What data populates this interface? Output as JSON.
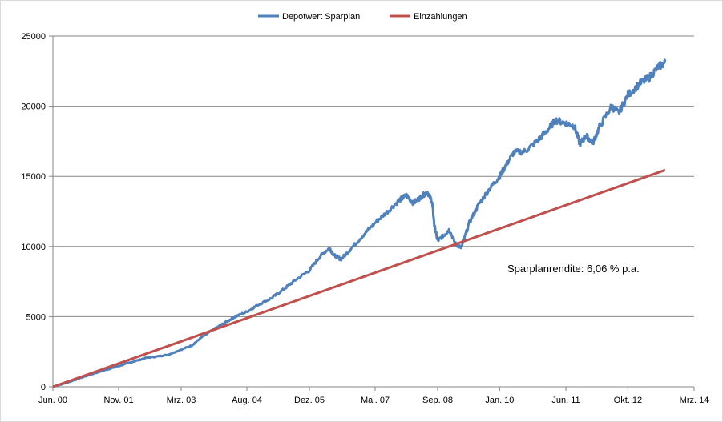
{
  "chart_data": {
    "type": "line",
    "title": "",
    "xlabel": "",
    "ylabel": "",
    "ylim": [
      0,
      25000
    ],
    "yticks": [
      0,
      5000,
      10000,
      15000,
      20000,
      25000
    ],
    "yticks_labels": [
      "0",
      "5000",
      "10000",
      "15000",
      "20000",
      "25000"
    ],
    "xlim": [
      2000.42,
      2014.17
    ],
    "xticks": [
      {
        "t": 2000.42,
        "label": "Jun. 00"
      },
      {
        "t": 2001.83,
        "label": "Nov. 01"
      },
      {
        "t": 2003.17,
        "label": "Mrz. 03"
      },
      {
        "t": 2004.58,
        "label": "Aug. 04"
      },
      {
        "t": 2005.92,
        "label": "Dez. 05"
      },
      {
        "t": 2007.33,
        "label": "Mai. 07"
      },
      {
        "t": 2008.67,
        "label": "Sep. 08"
      },
      {
        "t": 2010.0,
        "label": "Jan. 10"
      },
      {
        "t": 2011.42,
        "label": "Jun. 11"
      },
      {
        "t": 2012.75,
        "label": "Okt. 12"
      },
      {
        "t": 2014.17,
        "label": "Mrz. 14"
      }
    ],
    "grid": true,
    "legend_position": "top-center",
    "annotation": "Sparplanrendite: 6,06 % p.a.",
    "series": [
      {
        "name": "Depotwert Sparplan",
        "color": "#4F81BD",
        "points": [
          [
            2000.42,
            0
          ],
          [
            2000.7,
            280
          ],
          [
            2001.0,
            620
          ],
          [
            2001.3,
            950
          ],
          [
            2001.6,
            1250
          ],
          [
            2001.83,
            1480
          ],
          [
            2002.1,
            1750
          ],
          [
            2002.4,
            2050
          ],
          [
            2002.7,
            2180
          ],
          [
            2002.9,
            2300
          ],
          [
            2003.17,
            2650
          ],
          [
            2003.4,
            2950
          ],
          [
            2003.6,
            3500
          ],
          [
            2003.85,
            4050
          ],
          [
            2004.1,
            4550
          ],
          [
            2004.3,
            4950
          ],
          [
            2004.58,
            5350
          ],
          [
            2004.8,
            5800
          ],
          [
            2005.1,
            6300
          ],
          [
            2005.35,
            6900
          ],
          [
            2005.6,
            7550
          ],
          [
            2005.92,
            8300
          ],
          [
            2006.15,
            9300
          ],
          [
            2006.35,
            9900
          ],
          [
            2006.45,
            9350
          ],
          [
            2006.6,
            9100
          ],
          [
            2006.8,
            9800
          ],
          [
            2007.1,
            10900
          ],
          [
            2007.33,
            11700
          ],
          [
            2007.6,
            12500
          ],
          [
            2007.85,
            13300
          ],
          [
            2008.0,
            13650
          ],
          [
            2008.15,
            13100
          ],
          [
            2008.3,
            13500
          ],
          [
            2008.45,
            13900
          ],
          [
            2008.55,
            13200
          ],
          [
            2008.6,
            11500
          ],
          [
            2008.67,
            10400
          ],
          [
            2008.8,
            10800
          ],
          [
            2008.92,
            11200
          ],
          [
            2009.05,
            10200
          ],
          [
            2009.18,
            9900
          ],
          [
            2009.35,
            11700
          ],
          [
            2009.55,
            13000
          ],
          [
            2009.8,
            14200
          ],
          [
            2010.0,
            15000
          ],
          [
            2010.1,
            15600
          ],
          [
            2010.3,
            16700
          ],
          [
            2010.55,
            16800
          ],
          [
            2010.8,
            17500
          ],
          [
            2011.0,
            18200
          ],
          [
            2011.2,
            19000
          ],
          [
            2011.42,
            18800
          ],
          [
            2011.6,
            18600
          ],
          [
            2011.72,
            17300
          ],
          [
            2011.85,
            17900
          ],
          [
            2012.0,
            17400
          ],
          [
            2012.15,
            18600
          ],
          [
            2012.4,
            20000
          ],
          [
            2012.55,
            19500
          ],
          [
            2012.75,
            20800
          ],
          [
            2013.0,
            21600
          ],
          [
            2013.2,
            22000
          ],
          [
            2013.4,
            22800
          ],
          [
            2013.55,
            23100
          ]
        ]
      },
      {
        "name": "Einzahlungen",
        "color": "#C0504D",
        "points": [
          [
            2000.42,
            0
          ],
          [
            2013.55,
            15450
          ]
        ]
      }
    ]
  }
}
